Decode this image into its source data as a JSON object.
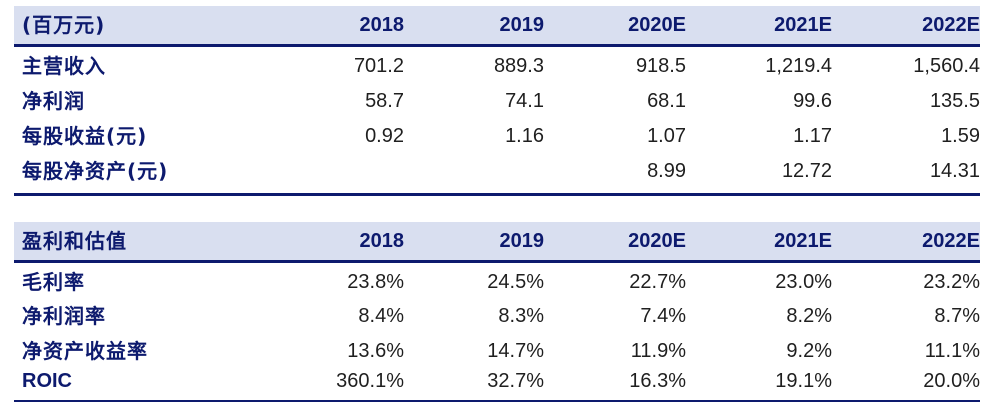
{
  "table1": {
    "header": [
      "(百万元)",
      "2018",
      "2019",
      "2020E",
      "2021E",
      "2022E"
    ],
    "rows": [
      {
        "label": "主营收入",
        "values": [
          "701.2",
          "889.3",
          "918.5",
          "1,219.4",
          "1,560.4"
        ]
      },
      {
        "label": "净利润",
        "values": [
          "58.7",
          "74.1",
          "68.1",
          "99.6",
          "135.5"
        ]
      },
      {
        "label": "每股收益(元)",
        "values": [
          "0.92",
          "1.16",
          "1.07",
          "1.17",
          "1.59"
        ]
      },
      {
        "label": "每股净资产(元)",
        "values": [
          "",
          "",
          "8.99",
          "12.72",
          "14.31"
        ]
      }
    ]
  },
  "table2": {
    "header": [
      "盈利和估值",
      "2018",
      "2019",
      "2020E",
      "2021E",
      "2022E"
    ],
    "rows": [
      {
        "label": "毛利率",
        "values": [
          "23.8%",
          "24.5%",
          "22.7%",
          "23.0%",
          "23.2%"
        ]
      },
      {
        "label": "净利润率",
        "values": [
          "8.4%",
          "8.3%",
          "7.4%",
          "8.2%",
          "8.7%"
        ]
      },
      {
        "label": "净资产收益率",
        "values": [
          "13.6%",
          "14.7%",
          "11.9%",
          "9.2%",
          "11.1%"
        ]
      },
      {
        "label": "ROIC",
        "values": [
          "360.1%",
          "32.7%",
          "16.3%",
          "19.1%",
          "20.0%"
        ]
      }
    ]
  },
  "colors": {
    "header_bg": "#d9dff0",
    "rule": "#0d1a6e",
    "label_text": "#0d1a6e"
  }
}
